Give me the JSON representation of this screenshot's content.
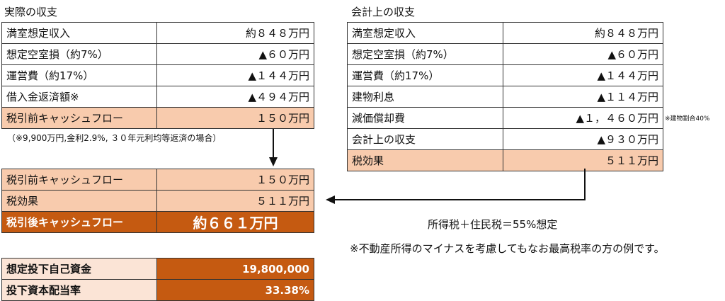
{
  "left": {
    "title": "実際の収支",
    "rows": [
      {
        "label": "満室想定収入",
        "value": "約８４８万円"
      },
      {
        "label": "想定空室損（約7%）",
        "value": "▲６０万円"
      },
      {
        "label": "運営費（約17%）",
        "value": "▲１４４万円"
      },
      {
        "label": "借入金返済額※",
        "value": "▲４９４万円"
      },
      {
        "label": "税引前キャッシュフロー",
        "value": "１５０万円"
      }
    ],
    "note": "（※9,900万円,金利2.9%, ３０年元利均等返済の場合）"
  },
  "right": {
    "title": "会計上の収支",
    "rows": [
      {
        "label": "満室想定収入",
        "value": "約８４８万円"
      },
      {
        "label": "想定空室損（約7%）",
        "value": "▲６０万円"
      },
      {
        "label": "運営費（約17%）",
        "value": "▲１４４万円"
      },
      {
        "label": "建物利息",
        "value": "▲１１４万円"
      },
      {
        "label": "減価償却費",
        "value": "▲１，４６０万円"
      },
      {
        "label": "会計上の収支",
        "value": "▲９３０万円"
      },
      {
        "label": "税効果",
        "value": "５１１万円"
      }
    ],
    "depreciation_note": "※建物割合40%"
  },
  "result": {
    "rows": [
      {
        "label": "税引前キャッシュフロー",
        "value": "１５０万円"
      },
      {
        "label": "税効果",
        "value": "５１１万円"
      },
      {
        "label": "税引後キャッシュフロー",
        "value": "約６６１万円"
      }
    ]
  },
  "investment": {
    "rows": [
      {
        "label": "想定投下自己資金",
        "value": "19,800,000"
      },
      {
        "label": "投下資本配当率",
        "value": "33.38%"
      }
    ]
  },
  "tax_note": "所得税＋住民税＝55%想定",
  "footnote": "※不動産所得のマイナスを考慮してもなお最高税率の方の例です。",
  "colors": {
    "peach": "#f8cbad",
    "dark_orange": "#c55a11",
    "pale": "#fbe4d6"
  }
}
